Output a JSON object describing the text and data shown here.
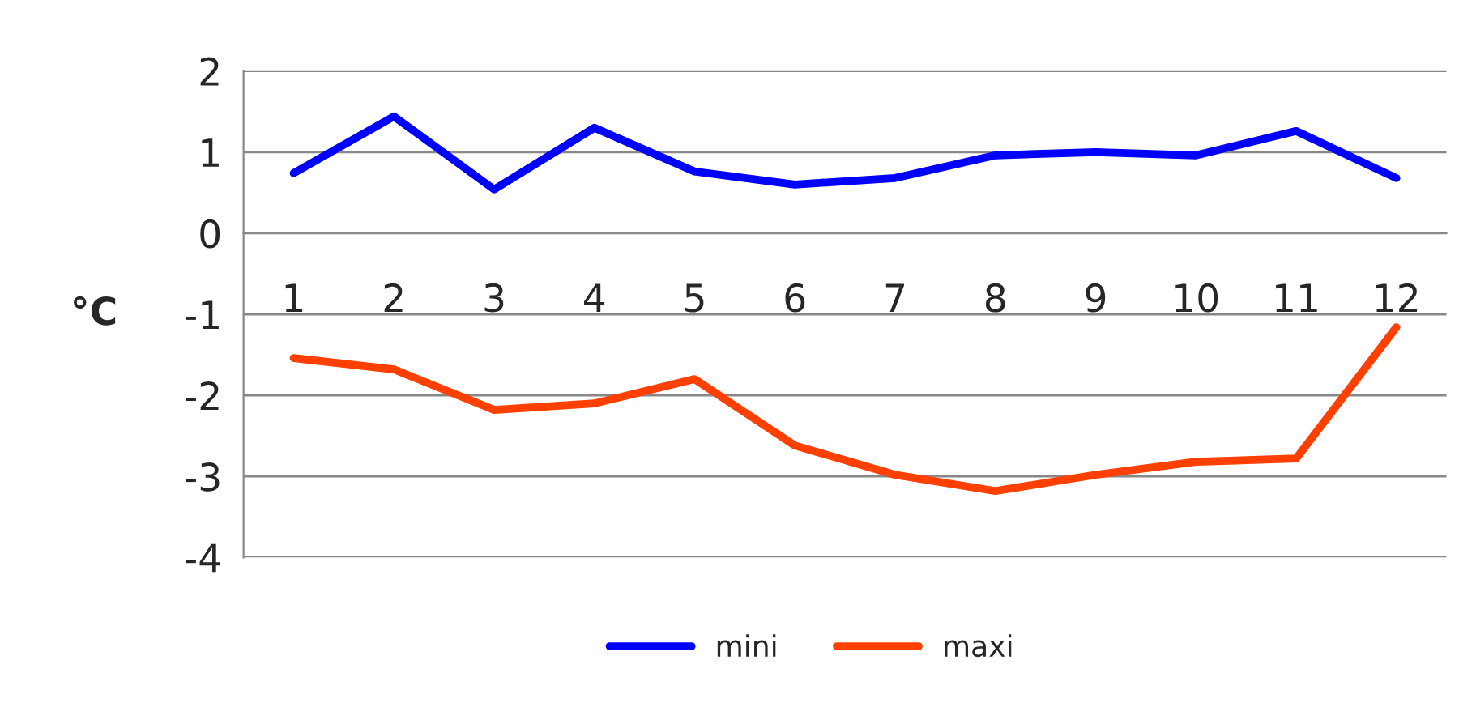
{
  "chart_data": {
    "type": "line",
    "ylabel": "°C",
    "categories": [
      "1",
      "2",
      "3",
      "4",
      "5",
      "6",
      "7",
      "8",
      "9",
      "10",
      "11",
      "12"
    ],
    "series": [
      {
        "name": "mini",
        "color": "#0000ff",
        "values": [
          0.74,
          1.44,
          0.54,
          1.3,
          0.76,
          0.6,
          0.68,
          0.96,
          1.0,
          0.96,
          1.26,
          0.68
        ]
      },
      {
        "name": "maxi",
        "color": "#ff4000",
        "values": [
          -1.54,
          -1.68,
          -2.18,
          -2.1,
          -1.8,
          -2.62,
          -2.98,
          -3.18,
          -2.98,
          -2.82,
          -2.78,
          -1.16
        ]
      }
    ],
    "ylim": [
      -4,
      2
    ],
    "yticks": [
      -4,
      -3,
      -2,
      -1,
      0,
      1,
      2
    ],
    "grid": "y",
    "legend": "bottom",
    "marker": "none",
    "line_style": "solid"
  }
}
